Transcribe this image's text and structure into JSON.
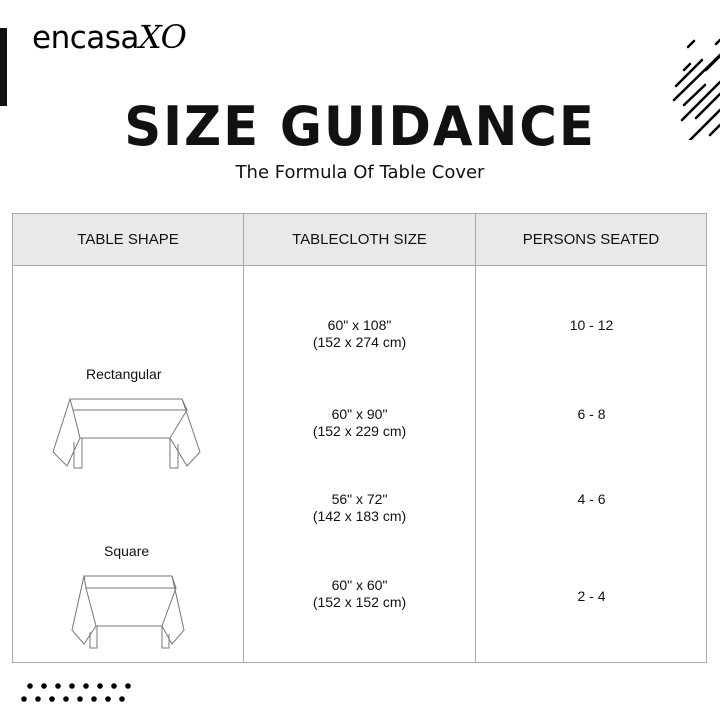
{
  "brand": {
    "name": "encasa",
    "suffix": "XO"
  },
  "title": "SIZE GUIDANCE",
  "subtitle": "The Formula Of Table Cover",
  "table": {
    "headers": [
      "TABLE SHAPE",
      "TABLECLOTH SIZE",
      "PERSONS SEATED"
    ],
    "shapes": [
      "Rectangular",
      "Square"
    ],
    "rows": [
      {
        "size": "60\" x 108\"",
        "size_cm": "(152 x 274 cm)",
        "persons": "10 - 12"
      },
      {
        "size": "60\" x 90\"",
        "size_cm": "(152 x 229 cm)",
        "persons": "6 - 8"
      },
      {
        "size": "56\" x 72\"",
        "size_cm": "(142 x 183 cm)",
        "persons": "4 - 6"
      },
      {
        "size": "60\" x 60\"",
        "size_cm": "(152 x 152 cm)",
        "persons": "2 - 4"
      }
    ]
  }
}
